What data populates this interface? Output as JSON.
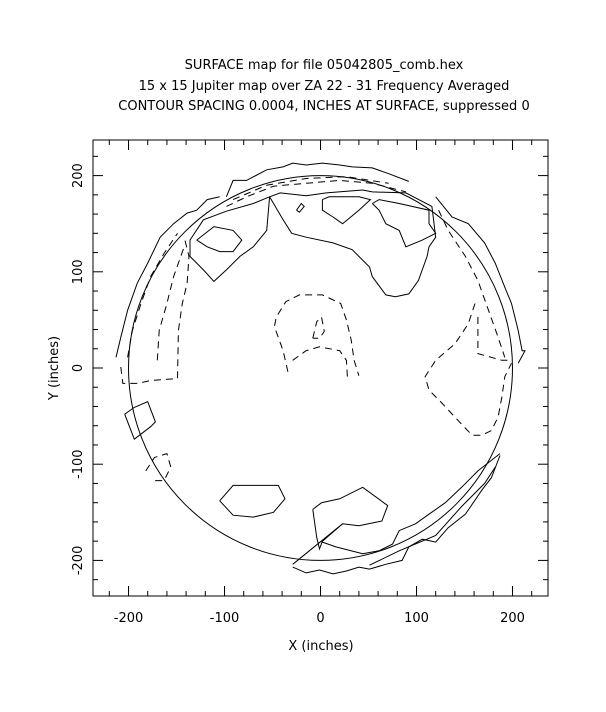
{
  "chart_data": {
    "type": "contour",
    "title": [
      "SURFACE map for file 05042805_comb.hex",
      "15 x 15 Jupiter map over ZA 22 - 31  Frequency Averaged",
      "CONTOUR SPACING 0.0004, INCHES AT SURFACE, suppressed 0"
    ],
    "xlabel": "X (inches)",
    "ylabel": "Y (inches)",
    "xlim": [
      -237,
      237
    ],
    "ylim": [
      -237,
      237
    ],
    "xticks": [
      -200,
      -100,
      0,
      100,
      200
    ],
    "yticks": [
      -200,
      -100,
      0,
      100,
      200
    ],
    "xtick_labels": [
      "-200",
      "-100",
      "0",
      "100",
      "200"
    ],
    "ytick_labels": [
      "-200",
      "-100",
      "0",
      "100",
      "200"
    ],
    "minor_tick_step": 20,
    "aperture_radius": 200,
    "grid": false,
    "contours_solid": [
      [
        [
          -53,
          178
        ],
        [
          -56,
          143
        ],
        [
          -70,
          126
        ],
        [
          -84,
          116
        ],
        [
          -98,
          102
        ],
        [
          -111,
          90
        ],
        [
          -122,
          102
        ],
        [
          -136,
          116
        ],
        [
          -136,
          133
        ],
        [
          -122,
          154
        ],
        [
          -98,
          163
        ],
        [
          -70,
          171
        ],
        [
          -53,
          178
        ]
      ],
      [
        [
          -53,
          178
        ],
        [
          -42,
          182
        ],
        [
          -15,
          179
        ],
        [
          6,
          182
        ],
        [
          44,
          185
        ],
        [
          54,
          183
        ],
        [
          89,
          182
        ],
        [
          116,
          168
        ],
        [
          120,
          136
        ],
        [
          113,
          126
        ],
        [
          111,
          116
        ],
        [
          102,
          91
        ],
        [
          92,
          77
        ],
        [
          78,
          74
        ],
        [
          68,
          76
        ],
        [
          54,
          95
        ],
        [
          51,
          105
        ],
        [
          33,
          123
        ],
        [
          13,
          130
        ],
        [
          -15,
          136
        ],
        [
          -30,
          140
        ],
        [
          -39,
          154
        ],
        [
          -53,
          178
        ]
      ],
      [
        [
          -129,
          133
        ],
        [
          -111,
          147
        ],
        [
          -91,
          143
        ],
        [
          -82,
          133
        ],
        [
          -91,
          121
        ],
        [
          -105,
          121
        ],
        [
          -118,
          126
        ],
        [
          -129,
          133
        ]
      ],
      [
        [
          2,
          175
        ],
        [
          9,
          178
        ],
        [
          40,
          178
        ],
        [
          52,
          175
        ],
        [
          40,
          164
        ],
        [
          23,
          150
        ],
        [
          13,
          157
        ],
        [
          2,
          164
        ],
        [
          2,
          175
        ]
      ],
      [
        [
          54,
          171
        ],
        [
          61,
          175
        ],
        [
          82,
          171
        ],
        [
          113,
          164
        ],
        [
          113,
          150
        ],
        [
          120,
          140
        ],
        [
          106,
          133
        ],
        [
          89,
          126
        ],
        [
          82,
          143
        ],
        [
          68,
          150
        ],
        [
          61,
          164
        ],
        [
          54,
          171
        ]
      ],
      [
        [
          -25,
          164
        ],
        [
          -20,
          171
        ],
        [
          -17,
          168
        ],
        [
          -22,
          162
        ],
        [
          -25,
          164
        ]
      ],
      [
        [
          -204,
          -48
        ],
        [
          -194,
          -41
        ],
        [
          -180,
          -35
        ],
        [
          -172,
          -56
        ],
        [
          -177,
          -61
        ],
        [
          -194,
          -74
        ],
        [
          -199,
          -61
        ],
        [
          -204,
          -48
        ]
      ],
      [
        [
          -105,
          -138
        ],
        [
          -91,
          -122
        ],
        [
          -44,
          -122
        ],
        [
          -37,
          -136
        ],
        [
          -49,
          -150
        ],
        [
          -70,
          -155
        ],
        [
          -91,
          -153
        ],
        [
          -105,
          -138
        ]
      ],
      [
        [
          -8,
          -147
        ],
        [
          1,
          -140
        ],
        [
          20,
          -136
        ],
        [
          44,
          -124
        ],
        [
          70,
          -143
        ],
        [
          64,
          -159
        ],
        [
          40,
          -164
        ],
        [
          23,
          -162
        ],
        [
          2,
          -180
        ],
        [
          -1,
          -188
        ],
        [
          -4,
          -176
        ],
        [
          -8,
          -147
        ]
      ],
      [
        [
          2,
          -181
        ],
        [
          16,
          -186
        ],
        [
          44,
          -193
        ],
        [
          61,
          -190
        ],
        [
          75,
          -183
        ],
        [
          82,
          -169
        ],
        [
          99,
          -162
        ],
        [
          113,
          -152
        ],
        [
          130,
          -140
        ],
        [
          147,
          -124
        ],
        [
          164,
          -107
        ],
        [
          187,
          -89
        ]
      ],
      [
        [
          -29,
          -207
        ],
        [
          -15,
          -213
        ],
        [
          -1,
          -210
        ],
        [
          13,
          -214
        ],
        [
          27,
          -211
        ],
        [
          40,
          -207
        ],
        [
          51,
          -209
        ],
        [
          68,
          -204
        ],
        [
          85,
          -200
        ],
        [
          92,
          -186
        ],
        [
          106,
          -178
        ],
        [
          120,
          -181
        ],
        [
          133,
          -166
        ],
        [
          151,
          -152
        ],
        [
          168,
          -127
        ],
        [
          178,
          -114
        ],
        [
          187,
          -91
        ]
      ],
      [
        [
          51,
          -205
        ],
        [
          82,
          -190
        ],
        [
          120,
          -174
        ],
        [
          147,
          -144
        ],
        [
          171,
          -120
        ],
        [
          182,
          -103
        ]
      ],
      [
        [
          -29,
          -204
        ],
        [
          23,
          -162
        ]
      ],
      [
        [
          -98,
          178
        ],
        [
          -91,
          195
        ],
        [
          -77,
          195
        ],
        [
          -56,
          206
        ],
        [
          -39,
          209
        ],
        [
          -29,
          213
        ],
        [
          -15,
          211
        ],
        [
          2,
          213
        ],
        [
          20,
          211
        ],
        [
          33,
          209
        ],
        [
          54,
          208
        ],
        [
          71,
          202
        ],
        [
          92,
          194
        ]
      ],
      [
        [
          -213,
          11
        ],
        [
          -208,
          32
        ],
        [
          -201,
          60
        ],
        [
          -191,
          88
        ],
        [
          -180,
          109
        ],
        [
          -167,
          136
        ],
        [
          -153,
          150
        ],
        [
          -139,
          161
        ],
        [
          -129,
          164
        ],
        [
          -118,
          175
        ],
        [
          -105,
          178
        ]
      ],
      [
        [
          120,
          178
        ],
        [
          137,
          157
        ],
        [
          154,
          150
        ],
        [
          171,
          130
        ],
        [
          182,
          109
        ],
        [
          192,
          84
        ],
        [
          199,
          67
        ],
        [
          206,
          39
        ],
        [
          210,
          18
        ],
        [
          213,
          18
        ],
        [
          206,
          5
        ]
      ]
    ],
    "contours_dashed": [
      [
        [
          -34,
          -4
        ],
        [
          -39,
          18
        ],
        [
          -48,
          43
        ],
        [
          -46,
          53
        ],
        [
          -36,
          69
        ],
        [
          -22,
          76
        ],
        [
          2,
          76
        ],
        [
          21,
          67
        ],
        [
          27,
          50
        ],
        [
          32,
          29
        ],
        [
          35,
          8
        ],
        [
          40,
          -8
        ]
      ],
      [
        [
          -29,
          8
        ],
        [
          -15,
          18
        ],
        [
          -1,
          22
        ],
        [
          20,
          18
        ],
        [
          27,
          8
        ],
        [
          28,
          -9
        ]
      ],
      [
        [
          -8,
          31
        ],
        [
          -4,
          48
        ],
        [
          1,
          53
        ],
        [
          4,
          38
        ],
        [
          -1,
          31
        ],
        [
          -8,
          31
        ]
      ],
      [
        [
          161,
          67
        ],
        [
          154,
          46
        ],
        [
          140,
          25
        ],
        [
          120,
          8
        ],
        [
          109,
          -9
        ],
        [
          113,
          -23
        ],
        [
          127,
          -37
        ],
        [
          140,
          -51
        ],
        [
          158,
          -70
        ],
        [
          168,
          -70
        ],
        [
          178,
          -65
        ],
        [
          185,
          -51
        ],
        [
          189,
          -30
        ],
        [
          192,
          -9
        ],
        [
          199,
          5
        ]
      ],
      [
        [
          164,
          53
        ],
        [
          164,
          15
        ],
        [
          189,
          8
        ],
        [
          199,
          8
        ]
      ],
      [
        [
          -208,
          1
        ],
        [
          -206,
          -16
        ],
        [
          -191,
          -16
        ],
        [
          -177,
          -13
        ],
        [
          -149,
          -11
        ],
        [
          -148,
          39
        ],
        [
          -144,
          67
        ],
        [
          -139,
          88
        ],
        [
          -137,
          116
        ],
        [
          -142,
          136
        ]
      ],
      [
        [
          -201,
          11
        ],
        [
          -196,
          39
        ],
        [
          -187,
          67
        ],
        [
          -177,
          95
        ],
        [
          -163,
          119
        ],
        [
          -149,
          140
        ]
      ],
      [
        [
          -170,
          8
        ],
        [
          -168,
          39
        ],
        [
          -160,
          67
        ],
        [
          -153,
          95
        ],
        [
          -142,
          126
        ]
      ],
      [
        [
          -98,
          168
        ],
        [
          -77,
          178
        ],
        [
          -49,
          189
        ],
        [
          -15,
          192
        ],
        [
          20,
          195
        ],
        [
          54,
          192
        ],
        [
          89,
          183
        ]
      ],
      [
        [
          -91,
          175
        ],
        [
          -56,
          190
        ],
        [
          -15,
          197
        ],
        [
          27,
          199
        ],
        [
          71,
          192
        ]
      ],
      [
        [
          123,
          164
        ],
        [
          133,
          143
        ],
        [
          151,
          116
        ],
        [
          164,
          91
        ],
        [
          175,
          60
        ],
        [
          185,
          32
        ],
        [
          192,
          11
        ]
      ],
      [
        [
          -182,
          -107
        ],
        [
          -173,
          -93
        ],
        [
          -160,
          -89
        ],
        [
          -156,
          -103
        ],
        [
          -163,
          -117
        ],
        [
          -173,
          -117
        ]
      ]
    ]
  }
}
